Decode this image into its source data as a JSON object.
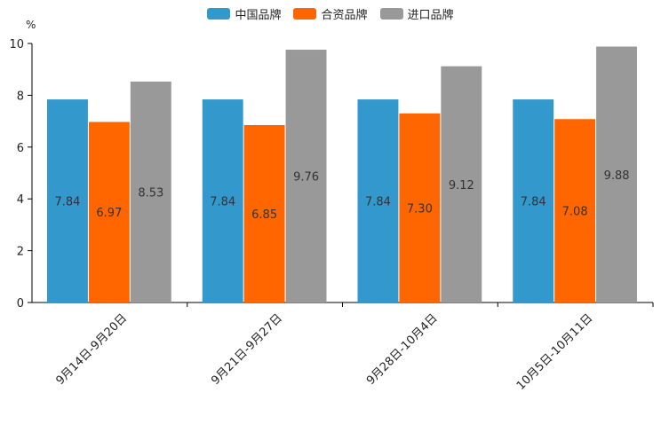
{
  "chart_data": {
    "type": "bar",
    "unit": "%",
    "categories": [
      "9月14日-9月20日",
      "9月21日-9月27日",
      "9月28日-10月4日",
      "10月5日-10月11日"
    ],
    "series": [
      {
        "name": "中国品牌",
        "color": "#3399CC",
        "values": [
          7.84,
          7.84,
          7.84,
          7.84
        ]
      },
      {
        "name": "合资品牌",
        "color": "#FF6600",
        "values": [
          6.97,
          6.85,
          7.3,
          7.08
        ]
      },
      {
        "name": "进口品牌",
        "color": "#999999",
        "values": [
          8.53,
          9.76,
          9.12,
          9.88
        ]
      }
    ],
    "ylim": [
      0,
      10
    ],
    "yticks": [
      0,
      2,
      4,
      6,
      8,
      10
    ],
    "legend_position": "top-center",
    "grid": false
  }
}
